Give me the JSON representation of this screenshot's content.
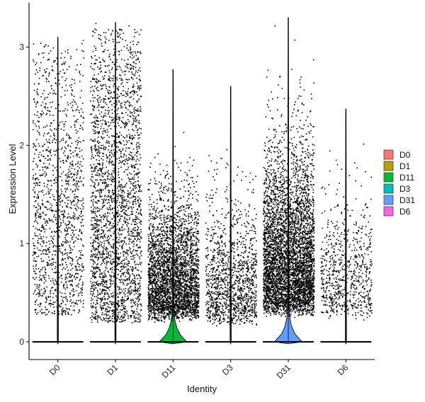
{
  "chart_data": {
    "type": "violin",
    "xlabel": "Identity",
    "ylabel": "Expression Level",
    "ylim": [
      -0.18,
      3.45
    ],
    "yticks": [
      0,
      1,
      2,
      3
    ],
    "categories": [
      "D0",
      "D1",
      "D11",
      "D3",
      "D31",
      "D6"
    ],
    "legend": {
      "placement": "right",
      "entries": [
        "D0",
        "D1",
        "D11",
        "D3",
        "D31",
        "D6"
      ]
    },
    "colors": [
      "#F8766D",
      "#B79F00",
      "#00BA38",
      "#00BFC4",
      "#619CFF",
      "#F564E3"
    ],
    "series": [
      {
        "name": "D0",
        "max": 3.1,
        "violin_max_width": 0.02,
        "points": 1400,
        "nonzero_range": [
          0.28,
          3.1
        ]
      },
      {
        "name": "D1",
        "max": 3.25,
        "violin_max_width": 0.02,
        "points": 2600,
        "nonzero_range": [
          0.2,
          3.25
        ]
      },
      {
        "name": "D11",
        "max": 2.77,
        "violin_max_width": 0.5,
        "points": 3300,
        "nonzero_range": [
          0.2,
          2.77
        ]
      },
      {
        "name": "D3",
        "max": 2.6,
        "violin_max_width": 0.02,
        "points": 1300,
        "nonzero_range": [
          0.15,
          2.6
        ]
      },
      {
        "name": "D31",
        "max": 3.3,
        "violin_max_width": 0.5,
        "points": 4800,
        "nonzero_range": [
          0.25,
          3.3
        ]
      },
      {
        "name": "D6",
        "max": 2.37,
        "violin_max_width": 0.02,
        "points": 750,
        "nonzero_range": [
          0.22,
          2.37
        ]
      }
    ],
    "grid": false
  }
}
